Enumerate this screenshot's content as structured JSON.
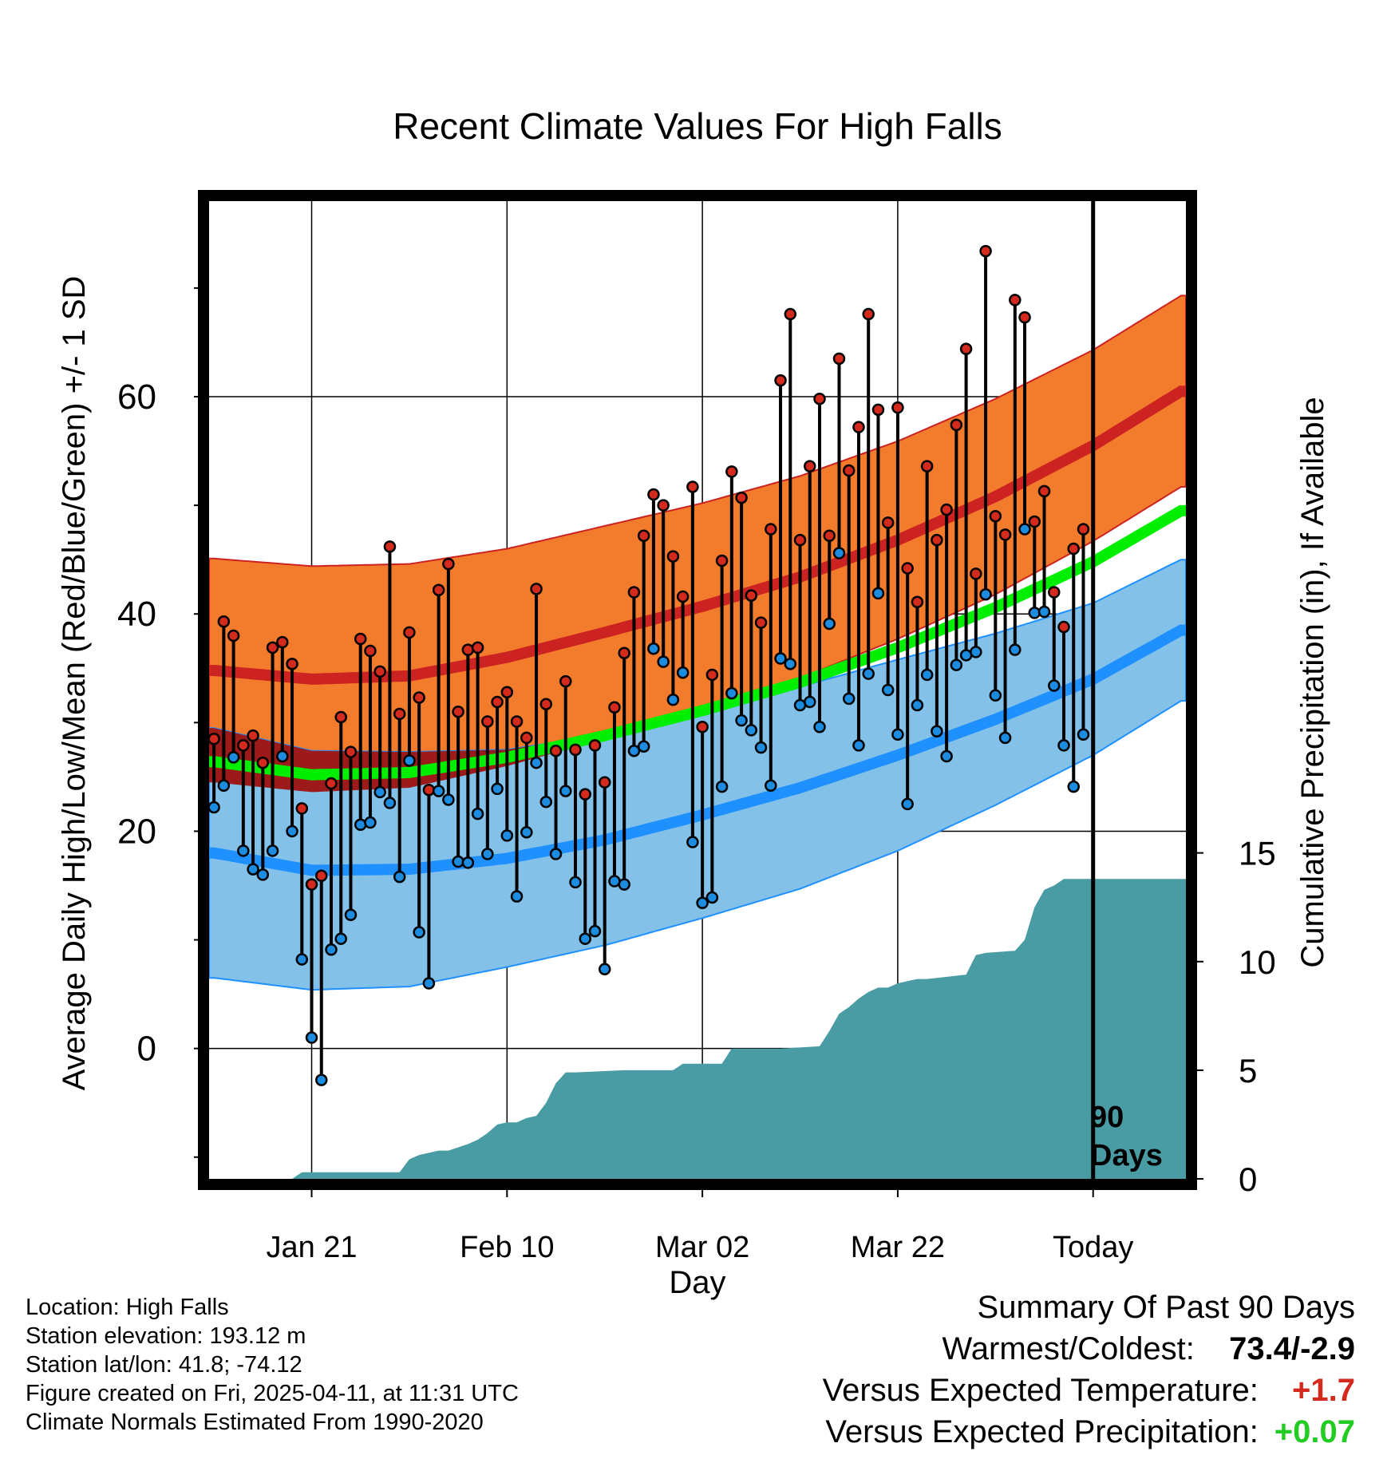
{
  "chart_data": {
    "type": "line",
    "title": "Recent Climate Values For High Falls",
    "xlabel": "Day",
    "ylabel": "Average Daily High/Low/Mean (Red/Blue/Green) +/- 1 SD",
    "y2label": "Cumulative Precipitation (in), If Available",
    "x_tick_labels": [
      "Jan 21",
      "Feb 10",
      "Mar 02",
      "Mar 22",
      "Today"
    ],
    "x_tick_days": [
      10,
      30,
      50,
      70,
      90
    ],
    "xlim": [
      -0.5,
      99.5
    ],
    "ylim": [
      -12,
      78
    ],
    "y_ticks": [
      0,
      20,
      40,
      60
    ],
    "y_minor_ticks": [
      -10,
      10,
      30,
      50,
      70
    ],
    "y2lim": [
      0,
      45
    ],
    "y2_ticks": [
      0,
      5,
      10,
      15
    ],
    "today_day": 90,
    "today_label_line1": "90",
    "today_label_line2": "Days",
    "colors": {
      "high_band": "#f37b2c",
      "high_mean": "#cc2222",
      "low_band": "#83c1e8",
      "low_mean": "#1e90ff",
      "mean": "#00ee00",
      "overlap": "#9c1a1a",
      "precip": "#4a9ca4",
      "high_dot": "#d42a1e",
      "low_dot": "#1c8ce0"
    },
    "normals": {
      "days": [
        0,
        10,
        20,
        30,
        40,
        50,
        60,
        70,
        80,
        90,
        99
      ],
      "high_mean": [
        34.8,
        34.0,
        34.3,
        36.0,
        38.3,
        40.7,
        43.4,
        46.8,
        50.8,
        55.5,
        60.5
      ],
      "high_sd": [
        10.3,
        10.4,
        10.3,
        10.0,
        9.8,
        9.5,
        9.3,
        9.1,
        9.0,
        8.8,
        8.8
      ],
      "low_mean": [
        18.0,
        16.4,
        16.5,
        17.5,
        19.2,
        21.5,
        24.0,
        27.0,
        30.3,
        34.0,
        38.5
      ],
      "low_sd": [
        11.5,
        11.0,
        10.8,
        10.0,
        9.7,
        9.5,
        9.3,
        8.8,
        7.9,
        7.0,
        6.5
      ],
      "mean": [
        26.4,
        25.2,
        25.4,
        26.8,
        28.8,
        31.1,
        33.7,
        36.9,
        40.6,
        44.8,
        49.5
      ]
    },
    "series": [
      {
        "name": "Daily High",
        "values": [
          28.5,
          39.3,
          38.0,
          27.9,
          28.8,
          26.3,
          36.9,
          37.4,
          35.4,
          22.1,
          15.1,
          15.9,
          24.4,
          30.5,
          27.3,
          37.7,
          36.6,
          34.7,
          46.2,
          30.8,
          38.3,
          32.3,
          23.8,
          42.2,
          44.6,
          31.0,
          36.7,
          36.9,
          30.1,
          31.9,
          32.8,
          30.1,
          28.6,
          42.3,
          31.7,
          27.4,
          33.8,
          27.5,
          23.4,
          27.9,
          24.5,
          31.4,
          36.4,
          42.0,
          47.2,
          51.0,
          50.0,
          45.3,
          41.6,
          51.7,
          29.6,
          34.4,
          44.9,
          53.1,
          50.7,
          41.7,
          39.2,
          47.8,
          61.5,
          67.6,
          46.8,
          53.6,
          59.8,
          47.2,
          63.5,
          53.2,
          57.2,
          67.6,
          58.8,
          48.4,
          59.0,
          44.2,
          41.1,
          53.6,
          46.8,
          49.6,
          57.4,
          64.4,
          43.7,
          73.4,
          49.0,
          47.3,
          68.9,
          67.3,
          48.5,
          51.3,
          42.0,
          38.8,
          46.0,
          47.8
        ],
        "color": "#d42a1e"
      },
      {
        "name": "Daily Low",
        "values": [
          22.2,
          24.2,
          26.8,
          18.2,
          16.5,
          16.0,
          18.2,
          26.9,
          20.0,
          8.2,
          1.0,
          -2.9,
          9.1,
          10.1,
          12.3,
          20.6,
          20.8,
          23.6,
          22.6,
          15.8,
          26.5,
          10.7,
          6.0,
          23.7,
          22.9,
          17.2,
          17.1,
          21.6,
          17.9,
          23.9,
          19.6,
          14.0,
          19.9,
          26.3,
          22.7,
          17.9,
          23.7,
          15.3,
          10.1,
          10.8,
          7.3,
          15.4,
          15.1,
          27.4,
          27.8,
          36.8,
          35.6,
          32.1,
          34.6,
          19.0,
          13.4,
          13.9,
          24.1,
          32.7,
          30.2,
          29.3,
          27.7,
          24.2,
          35.9,
          35.4,
          31.6,
          31.9,
          29.6,
          39.1,
          45.6,
          32.2,
          27.9,
          34.5,
          41.9,
          33.0,
          28.9,
          22.5,
          31.6,
          34.4,
          29.2,
          26.9,
          35.3,
          36.2,
          36.5,
          41.8,
          32.5,
          28.6,
          36.7,
          47.8,
          40.1,
          40.2,
          33.4,
          27.9,
          24.1,
          28.9
        ],
        "color": "#1c8ce0"
      }
    ],
    "precip_cumulative": {
      "days": [
        -0.5,
        8,
        9,
        19,
        20,
        21,
        23,
        24,
        26,
        27,
        28,
        29,
        30,
        31,
        32,
        33,
        34,
        35,
        36,
        37,
        42,
        47,
        48,
        52,
        53,
        58,
        62,
        63,
        64,
        65,
        66,
        67,
        68,
        69,
        70,
        72,
        73,
        77,
        78,
        79,
        82,
        83,
        84,
        85,
        86,
        87,
        99.5
      ],
      "values": [
        0,
        0,
        0.3,
        0.3,
        0.9,
        1.1,
        1.3,
        1.3,
        1.6,
        1.8,
        2.1,
        2.5,
        2.6,
        2.6,
        2.8,
        2.9,
        3.5,
        4.4,
        4.9,
        4.9,
        5.0,
        5.0,
        5.3,
        5.3,
        6.0,
        6.0,
        6.1,
        6.8,
        7.6,
        7.9,
        8.3,
        8.6,
        8.8,
        8.8,
        9.0,
        9.2,
        9.2,
        9.4,
        10.3,
        10.4,
        10.5,
        11.0,
        12.5,
        13.3,
        13.5,
        13.8,
        13.8
      ],
      "color": "#4a9ca4"
    }
  },
  "info": {
    "location": "Location: High Falls",
    "elevation": "Station elevation: 193.12 m",
    "latlon": "Station lat/lon: 41.8; -74.12",
    "created": "Figure created on Fri, 2025-04-11, at 11:31 UTC",
    "normals": "Climate Normals Estimated From 1990-2020"
  },
  "summary": {
    "title": "Summary Of Past 90 Days",
    "warm_cold_label": "Warmest/Coldest:",
    "warm_cold_value": "73.4/-2.9",
    "temp_label": "Versus Expected Temperature:",
    "temp_value": "+1.7",
    "temp_color": "#d42a1e",
    "precip_label": "Versus Expected Precipitation:",
    "precip_value": "+0.07",
    "precip_color": "#22cc22"
  }
}
